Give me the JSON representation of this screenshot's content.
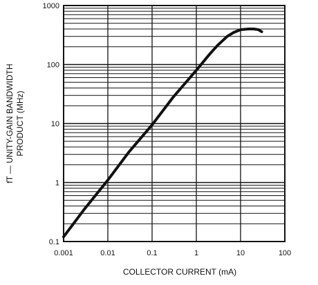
{
  "chart_data": {
    "type": "line",
    "title": "",
    "xlabel": "COLLECTOR CURRENT (mA)",
    "ylabel_line1": "fT — UNITY-GAIN BANDWIDTH",
    "ylabel_line2": "PRODUCT (MHz)",
    "x_scale": "log",
    "y_scale": "log",
    "xlim": [
      0.001,
      100
    ],
    "ylim": [
      0.1,
      1000
    ],
    "grid": true,
    "x_ticks": [
      0.001,
      0.01,
      0.1,
      1,
      10,
      100
    ],
    "x_tick_labels": [
      "0.001",
      "0.01",
      "0.1",
      "1",
      "10",
      "100"
    ],
    "y_ticks": [
      0.1,
      1,
      10,
      100,
      1000
    ],
    "y_tick_labels": [
      "0.1",
      "1",
      "10",
      "100",
      "1000"
    ],
    "series": [
      {
        "x": [
          0.001,
          0.003,
          0.01,
          0.03,
          0.1,
          0.3,
          1,
          2,
          3,
          5,
          7,
          10,
          15,
          20,
          25,
          30
        ],
        "y": [
          0.12,
          0.36,
          1.1,
          3.3,
          9.5,
          28,
          80,
          150,
          210,
          300,
          350,
          390,
          400,
          400,
          390,
          360
        ]
      }
    ]
  }
}
